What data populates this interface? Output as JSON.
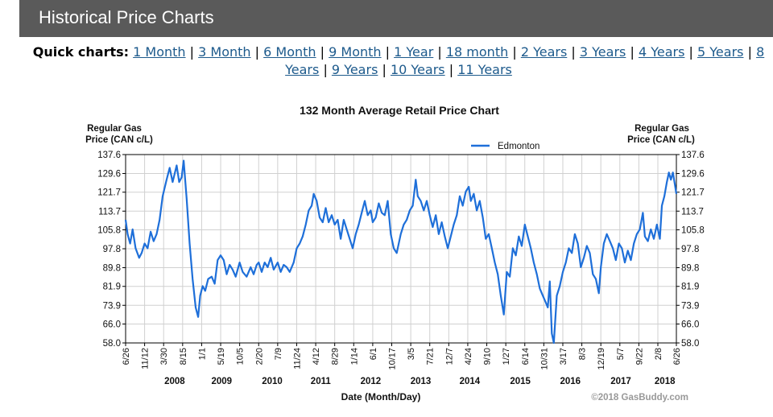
{
  "header": {
    "title": "Historical Price Charts"
  },
  "quick_charts": {
    "label": "Quick charts:",
    "separator": "|",
    "links": [
      "1 Month",
      "3 Month",
      "6 Month",
      "9 Month",
      "1 Year",
      "18 month",
      "2 Years",
      "3 Years",
      "4 Years",
      "5 Years",
      "8 Years",
      "9 Years",
      "10 Years",
      "11 Years"
    ]
  },
  "chart_data": {
    "type": "line",
    "title": "132 Month Average Retail Price Chart",
    "ylabel": "Regular Gas Price (CAN c/L)",
    "ylabel_lines": [
      "Regular Gas",
      "Price (CAN c/L)"
    ],
    "xlabel": "Date (Month/Day)",
    "copyright": "©2018 GasBuddy.com",
    "ylim": [
      58.0,
      137.6
    ],
    "yticks": [
      "58.0",
      "66.0",
      "73.9",
      "81.9",
      "89.8",
      "97.8",
      "105.8",
      "113.7",
      "121.7",
      "129.6",
      "137.6"
    ],
    "xlim": [
      2007.48,
      2018.49
    ],
    "xticks": [
      {
        "label": "6/26",
        "x": 2007.48
      },
      {
        "label": "11/12",
        "x": 2007.86
      },
      {
        "label": "3/30",
        "x": 2008.24
      },
      {
        "label": "8/15",
        "x": 2008.62
      },
      {
        "label": "1/1",
        "x": 2009.0
      },
      {
        "label": "5/19",
        "x": 2009.38
      },
      {
        "label": "10/5",
        "x": 2009.76
      },
      {
        "label": "2/20",
        "x": 2010.14
      },
      {
        "label": "7/9",
        "x": 2010.52
      },
      {
        "label": "11/24",
        "x": 2010.9
      },
      {
        "label": "4/12",
        "x": 2011.28
      },
      {
        "label": "8/29",
        "x": 2011.66
      },
      {
        "label": "1/14",
        "x": 2012.04
      },
      {
        "label": "6/1",
        "x": 2012.42
      },
      {
        "label": "10/17",
        "x": 2012.8
      },
      {
        "label": "3/5",
        "x": 2013.18
      },
      {
        "label": "7/21",
        "x": 2013.56
      },
      {
        "label": "12/7",
        "x": 2013.94
      },
      {
        "label": "4/24",
        "x": 2014.32
      },
      {
        "label": "9/10",
        "x": 2014.7
      },
      {
        "label": "1/27",
        "x": 2015.08
      },
      {
        "label": "6/14",
        "x": 2015.46
      },
      {
        "label": "10/31",
        "x": 2015.84
      },
      {
        "label": "3/17",
        "x": 2016.22
      },
      {
        "label": "8/3",
        "x": 2016.6
      },
      {
        "label": "12/19",
        "x": 2016.98
      },
      {
        "label": "5/7",
        "x": 2017.36
      },
      {
        "label": "9/22",
        "x": 2017.74
      },
      {
        "label": "2/8",
        "x": 2018.12
      },
      {
        "label": "6/26",
        "x": 2018.49
      }
    ],
    "years": [
      {
        "label": "2008",
        "x": 2008.46
      },
      {
        "label": "2009",
        "x": 2009.4
      },
      {
        "label": "2010",
        "x": 2010.41
      },
      {
        "label": "2011",
        "x": 2011.38
      },
      {
        "label": "2012",
        "x": 2012.38
      },
      {
        "label": "2013",
        "x": 2013.38
      },
      {
        "label": "2014",
        "x": 2014.36
      },
      {
        "label": "2015",
        "x": 2015.37
      },
      {
        "label": "2016",
        "x": 2016.37
      },
      {
        "label": "2017",
        "x": 2017.38
      },
      {
        "label": "2018",
        "x": 2018.26
      }
    ],
    "grid": true,
    "legend_position": "top-right",
    "series": [
      {
        "name": "Edmonton",
        "color": "#1e6fd9",
        "points": [
          [
            2007.48,
            110
          ],
          [
            2007.52,
            104
          ],
          [
            2007.57,
            100
          ],
          [
            2007.62,
            106
          ],
          [
            2007.68,
            98
          ],
          [
            2007.75,
            94
          ],
          [
            2007.8,
            96
          ],
          [
            2007.86,
            100
          ],
          [
            2007.92,
            98
          ],
          [
            2007.98,
            105
          ],
          [
            2008.04,
            101
          ],
          [
            2008.1,
            104
          ],
          [
            2008.16,
            110
          ],
          [
            2008.22,
            120
          ],
          [
            2008.3,
            127
          ],
          [
            2008.36,
            132
          ],
          [
            2008.42,
            126
          ],
          [
            2008.5,
            133
          ],
          [
            2008.55,
            126
          ],
          [
            2008.6,
            128
          ],
          [
            2008.64,
            135
          ],
          [
            2008.7,
            119
          ],
          [
            2008.76,
            100
          ],
          [
            2008.82,
            85
          ],
          [
            2008.88,
            73
          ],
          [
            2008.93,
            69
          ],
          [
            2008.97,
            78
          ],
          [
            2009.02,
            82
          ],
          [
            2009.07,
            80
          ],
          [
            2009.13,
            85
          ],
          [
            2009.2,
            86
          ],
          [
            2009.26,
            83
          ],
          [
            2009.32,
            93
          ],
          [
            2009.38,
            95
          ],
          [
            2009.44,
            93
          ],
          [
            2009.5,
            87
          ],
          [
            2009.56,
            91
          ],
          [
            2009.62,
            89
          ],
          [
            2009.68,
            86
          ],
          [
            2009.76,
            92
          ],
          [
            2009.82,
            88
          ],
          [
            2009.9,
            86
          ],
          [
            2009.98,
            90
          ],
          [
            2010.04,
            87
          ],
          [
            2010.1,
            91
          ],
          [
            2010.14,
            92
          ],
          [
            2010.2,
            88
          ],
          [
            2010.26,
            92
          ],
          [
            2010.32,
            90
          ],
          [
            2010.38,
            94
          ],
          [
            2010.44,
            89
          ],
          [
            2010.52,
            92
          ],
          [
            2010.58,
            88
          ],
          [
            2010.64,
            91
          ],
          [
            2010.7,
            90
          ],
          [
            2010.76,
            88
          ],
          [
            2010.84,
            92
          ],
          [
            2010.9,
            98
          ],
          [
            2010.96,
            100
          ],
          [
            2011.02,
            103
          ],
          [
            2011.08,
            108
          ],
          [
            2011.14,
            114
          ],
          [
            2011.2,
            116
          ],
          [
            2011.24,
            121
          ],
          [
            2011.3,
            118
          ],
          [
            2011.36,
            111
          ],
          [
            2011.42,
            109
          ],
          [
            2011.48,
            115
          ],
          [
            2011.54,
            109
          ],
          [
            2011.6,
            112
          ],
          [
            2011.66,
            108
          ],
          [
            2011.72,
            110
          ],
          [
            2011.78,
            102
          ],
          [
            2011.84,
            110
          ],
          [
            2011.9,
            106
          ],
          [
            2011.96,
            102
          ],
          [
            2012.02,
            98
          ],
          [
            2012.08,
            104
          ],
          [
            2012.14,
            108
          ],
          [
            2012.2,
            113
          ],
          [
            2012.26,
            118
          ],
          [
            2012.32,
            112
          ],
          [
            2012.38,
            114
          ],
          [
            2012.42,
            109
          ],
          [
            2012.48,
            111
          ],
          [
            2012.54,
            117
          ],
          [
            2012.6,
            113
          ],
          [
            2012.66,
            112
          ],
          [
            2012.72,
            118
          ],
          [
            2012.78,
            104
          ],
          [
            2012.84,
            98
          ],
          [
            2012.9,
            96
          ],
          [
            2012.98,
            104
          ],
          [
            2013.04,
            108
          ],
          [
            2013.1,
            110
          ],
          [
            2013.16,
            114
          ],
          [
            2013.22,
            116
          ],
          [
            2013.28,
            127
          ],
          [
            2013.32,
            120
          ],
          [
            2013.38,
            118
          ],
          [
            2013.44,
            114
          ],
          [
            2013.5,
            118
          ],
          [
            2013.56,
            112
          ],
          [
            2013.62,
            107
          ],
          [
            2013.68,
            112
          ],
          [
            2013.74,
            104
          ],
          [
            2013.8,
            109
          ],
          [
            2013.86,
            103
          ],
          [
            2013.92,
            98
          ],
          [
            2013.98,
            103
          ],
          [
            2014.04,
            108
          ],
          [
            2014.1,
            112
          ],
          [
            2014.16,
            120
          ],
          [
            2014.22,
            116
          ],
          [
            2014.28,
            122
          ],
          [
            2014.34,
            124
          ],
          [
            2014.38,
            118
          ],
          [
            2014.44,
            121
          ],
          [
            2014.5,
            114
          ],
          [
            2014.56,
            118
          ],
          [
            2014.62,
            111
          ],
          [
            2014.68,
            102
          ],
          [
            2014.74,
            104
          ],
          [
            2014.8,
            98
          ],
          [
            2014.86,
            92
          ],
          [
            2014.92,
            87
          ],
          [
            2014.98,
            78
          ],
          [
            2015.04,
            70
          ],
          [
            2015.1,
            88
          ],
          [
            2015.16,
            86
          ],
          [
            2015.22,
            98
          ],
          [
            2015.28,
            95
          ],
          [
            2015.34,
            103
          ],
          [
            2015.4,
            99
          ],
          [
            2015.46,
            108
          ],
          [
            2015.52,
            103
          ],
          [
            2015.58,
            98
          ],
          [
            2015.64,
            92
          ],
          [
            2015.7,
            87
          ],
          [
            2015.76,
            81
          ],
          [
            2015.82,
            78
          ],
          [
            2015.88,
            75
          ],
          [
            2015.92,
            73
          ],
          [
            2015.96,
            84
          ],
          [
            2016.0,
            62
          ],
          [
            2016.04,
            58
          ],
          [
            2016.1,
            78
          ],
          [
            2016.16,
            82
          ],
          [
            2016.22,
            88
          ],
          [
            2016.28,
            92
          ],
          [
            2016.34,
            98
          ],
          [
            2016.4,
            96
          ],
          [
            2016.46,
            104
          ],
          [
            2016.52,
            100
          ],
          [
            2016.58,
            90
          ],
          [
            2016.64,
            94
          ],
          [
            2016.7,
            99
          ],
          [
            2016.76,
            96
          ],
          [
            2016.82,
            87
          ],
          [
            2016.88,
            85
          ],
          [
            2016.94,
            79
          ],
          [
            2016.98,
            90
          ],
          [
            2017.04,
            100
          ],
          [
            2017.1,
            104
          ],
          [
            2017.16,
            101
          ],
          [
            2017.22,
            98
          ],
          [
            2017.28,
            93
          ],
          [
            2017.34,
            100
          ],
          [
            2017.4,
            98
          ],
          [
            2017.46,
            92
          ],
          [
            2017.52,
            97
          ],
          [
            2017.58,
            93
          ],
          [
            2017.64,
            100
          ],
          [
            2017.7,
            104
          ],
          [
            2017.76,
            106
          ],
          [
            2017.82,
            113
          ],
          [
            2017.86,
            103
          ],
          [
            2017.92,
            101
          ],
          [
            2017.98,
            106
          ],
          [
            2018.04,
            102
          ],
          [
            2018.1,
            108
          ],
          [
            2018.16,
            102
          ],
          [
            2018.2,
            116
          ],
          [
            2018.25,
            120
          ],
          [
            2018.3,
            126
          ],
          [
            2018.34,
            130
          ],
          [
            2018.38,
            127
          ],
          [
            2018.42,
            130
          ],
          [
            2018.46,
            125
          ],
          [
            2018.49,
            121
          ]
        ]
      }
    ]
  }
}
